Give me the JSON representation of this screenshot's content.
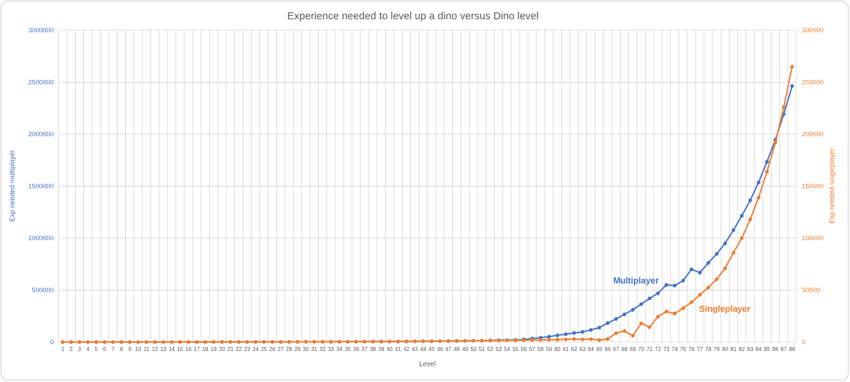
{
  "chart": {
    "title": "Experience needed to level up a dino versus Dino level",
    "x_axis_title": "Level",
    "y_left_axis_title": "Exp needed multiplayer",
    "y_right_axis_title": "Exp needed singleplayer",
    "colors": {
      "multiplayer": "#4472C4",
      "singleplayer": "#ED7D31",
      "gridline": "#D9D9D9",
      "axis_text": "#595959",
      "title_text": "#595959",
      "border": "#D9D9D9",
      "background": "#FFFFFF"
    }
  },
  "chart_data": {
    "type": "line",
    "title": "Experience needed to level up a dino versus Dino level",
    "xlabel": "Level",
    "ylabel_left": "Exp needed multiplayer",
    "ylabel_right": "Exp needed singleplayer",
    "grid": true,
    "legend_position": "inline-series-labels",
    "marker": "circle",
    "x": [
      1,
      2,
      3,
      4,
      5,
      6,
      7,
      8,
      9,
      10,
      11,
      12,
      13,
      14,
      15,
      16,
      17,
      18,
      19,
      20,
      21,
      22,
      23,
      24,
      25,
      26,
      27,
      28,
      29,
      30,
      31,
      32,
      33,
      34,
      35,
      36,
      37,
      38,
      39,
      40,
      41,
      42,
      43,
      44,
      45,
      46,
      47,
      48,
      49,
      50,
      51,
      52,
      53,
      54,
      55,
      56,
      57,
      58,
      59,
      60,
      61,
      62,
      63,
      64,
      65,
      66,
      67,
      68,
      69,
      70,
      71,
      72,
      73,
      74,
      75,
      76,
      77,
      78,
      79,
      80,
      81,
      82,
      83,
      84,
      85,
      86,
      87,
      88
    ],
    "ylim_left": [
      0,
      3000000
    ],
    "ylim_right": [
      0,
      300000
    ],
    "y_left_ticks": [
      "0",
      "500000",
      "1000000",
      "1500000",
      "2000000",
      "2500000",
      "3000000"
    ],
    "y_right_ticks": [
      "0",
      "50000",
      "100000",
      "150000",
      "200000",
      "250000",
      "300000"
    ],
    "series": [
      {
        "name": "Multiplayer",
        "axis": "left",
        "color": "#4472C4",
        "values": [
          300,
          320,
          350,
          380,
          400,
          430,
          460,
          500,
          530,
          560,
          600,
          650,
          700,
          750,
          800,
          850,
          900,
          950,
          1050,
          1100,
          1200,
          1300,
          1400,
          1500,
          1650,
          1800,
          1950,
          2100,
          2250,
          2400,
          2600,
          2850,
          3100,
          3400,
          3700,
          4000,
          4300,
          4650,
          5000,
          5300,
          5500,
          6200,
          7000,
          7800,
          8700,
          9600,
          10600,
          11700,
          12800,
          13500,
          14000,
          16000,
          18000,
          19500,
          21000,
          26000,
          34000,
          42000,
          52000,
          65000,
          76000,
          88000,
          98000,
          117000,
          139000,
          183000,
          223000,
          267000,
          311000,
          365000,
          420000,
          470000,
          550000,
          544000,
          591000,
          700000,
          668000,
          762000,
          848000,
          950000,
          1077000,
          1216000,
          1364000,
          1536000,
          1735000,
          1947000,
          2192000,
          2464000
        ]
      },
      {
        "name": "Singleplayer",
        "axis": "right",
        "color": "#ED7D31",
        "values": [
          30,
          35,
          40,
          45,
          50,
          55,
          60,
          65,
          70,
          75,
          80,
          85,
          90,
          100,
          110,
          120,
          130,
          140,
          150,
          160,
          175,
          190,
          205,
          220,
          240,
          260,
          280,
          300,
          320,
          340,
          365,
          390,
          415,
          440,
          470,
          500,
          530,
          560,
          600,
          640,
          680,
          730,
          780,
          830,
          890,
          950,
          1010,
          1080,
          1150,
          1230,
          1310,
          1400,
          1490,
          1590,
          1700,
          1810,
          1930,
          2060,
          2200,
          2350,
          2600,
          2900,
          2600,
          2850,
          2000,
          2900,
          8600,
          10600,
          6100,
          18000,
          14400,
          24500,
          29400,
          27400,
          32600,
          38400,
          45500,
          52500,
          60500,
          71000,
          86000,
          100000,
          118000,
          139000,
          164000,
          192000,
          226000,
          265000
        ]
      }
    ]
  }
}
